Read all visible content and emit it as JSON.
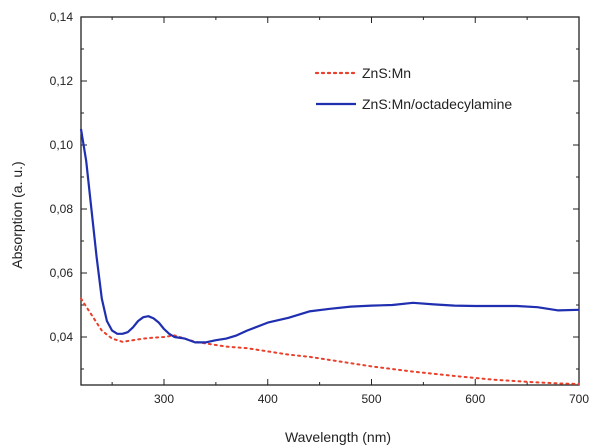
{
  "chart_data": {
    "type": "line",
    "title": "",
    "xlabel": "Wavelength (nm)",
    "ylabel": "Absorption (a. u.)",
    "xlim": [
      220,
      700
    ],
    "ylim": [
      0.025,
      0.14
    ],
    "x_ticks": [
      300,
      400,
      500,
      600,
      700
    ],
    "x_tick_labels": [
      "300",
      "400",
      "500",
      "600",
      "700"
    ],
    "y_ticks": [
      0.04,
      0.06,
      0.08,
      0.1,
      0.12,
      0.14
    ],
    "y_tick_labels": [
      "0,04",
      "0,06",
      "0,08",
      "0,10",
      "0,12",
      "0,14"
    ],
    "grid": false,
    "legend_position": "top-right",
    "series": [
      {
        "name": "ZnS:Mn",
        "color": "#e8402a",
        "dash": "dotted",
        "x": [
          220,
          230,
          240,
          250,
          260,
          270,
          280,
          290,
          300,
          310,
          320,
          330,
          340,
          350,
          360,
          380,
          400,
          420,
          440,
          460,
          480,
          500,
          520,
          540,
          560,
          580,
          600,
          620,
          640,
          660,
          680,
          700
        ],
        "y": [
          0.052,
          0.047,
          0.042,
          0.0395,
          0.0385,
          0.039,
          0.0395,
          0.0398,
          0.04,
          0.0405,
          0.0395,
          0.0385,
          0.038,
          0.0375,
          0.037,
          0.0365,
          0.0355,
          0.0345,
          0.0338,
          0.0328,
          0.0318,
          0.0308,
          0.03,
          0.0292,
          0.0285,
          0.0278,
          0.0272,
          0.0266,
          0.0262,
          0.0258,
          0.0255,
          0.0253
        ]
      },
      {
        "name": "ZnS:Mn/octadecylamine",
        "color": "#1f2fb0",
        "dash": "solid",
        "x": [
          220,
          225,
          230,
          235,
          240,
          245,
          250,
          255,
          260,
          265,
          270,
          275,
          280,
          285,
          290,
          295,
          300,
          305,
          310,
          320,
          330,
          340,
          350,
          360,
          370,
          380,
          400,
          420,
          440,
          460,
          480,
          500,
          520,
          540,
          560,
          580,
          600,
          620,
          640,
          660,
          680,
          700
        ],
        "y": [
          0.105,
          0.095,
          0.08,
          0.065,
          0.052,
          0.045,
          0.042,
          0.041,
          0.041,
          0.0415,
          0.043,
          0.045,
          0.0462,
          0.0465,
          0.0458,
          0.0445,
          0.0425,
          0.041,
          0.04,
          0.0395,
          0.0383,
          0.0383,
          0.039,
          0.0395,
          0.0405,
          0.042,
          0.0445,
          0.046,
          0.048,
          0.0488,
          0.0495,
          0.0498,
          0.05,
          0.0507,
          0.0502,
          0.0498,
          0.0497,
          0.0497,
          0.0497,
          0.0493,
          0.0483,
          0.0485
        ]
      }
    ]
  }
}
